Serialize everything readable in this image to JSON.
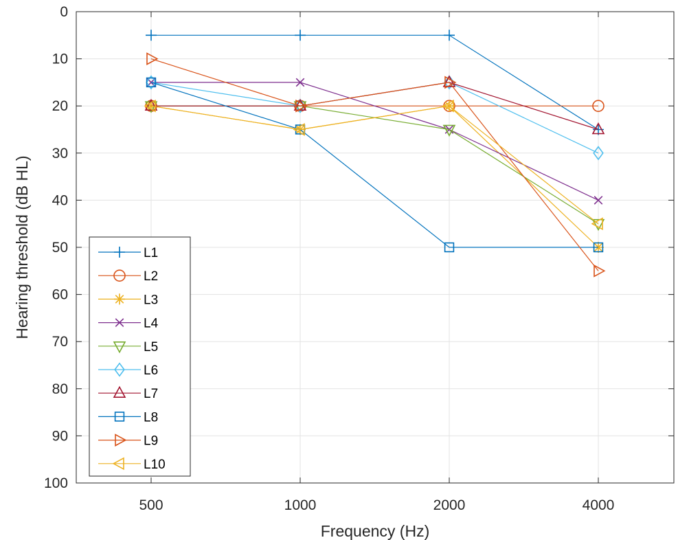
{
  "chart_data": {
    "type": "line",
    "title": "",
    "xlabel": "Frequency (Hz)",
    "ylabel": "Hearing threshold (dB HL)",
    "x_categories": [
      "500",
      "1000",
      "2000",
      "4000"
    ],
    "y_ticks": [
      0,
      10,
      20,
      30,
      40,
      50,
      60,
      70,
      80,
      90,
      100
    ],
    "ylim": [
      0,
      100
    ],
    "y_reversed": true,
    "grid": true,
    "legend_location": "bottom-left",
    "series": [
      {
        "name": "L1",
        "color": "#0072BD",
        "marker": "plus",
        "values": [
          5,
          5,
          5,
          25
        ]
      },
      {
        "name": "L2",
        "color": "#D95319",
        "marker": "circle",
        "values": [
          20,
          20,
          20,
          20
        ]
      },
      {
        "name": "L3",
        "color": "#EDB120",
        "marker": "asterisk",
        "values": [
          20,
          25,
          20,
          50
        ]
      },
      {
        "name": "L4",
        "color": "#7E2F8E",
        "marker": "x",
        "values": [
          15,
          15,
          25,
          40
        ]
      },
      {
        "name": "L5",
        "color": "#77AC30",
        "marker": "triangle-down",
        "values": [
          20,
          20,
          25,
          45
        ]
      },
      {
        "name": "L6",
        "color": "#4DBEEE",
        "marker": "diamond",
        "values": [
          15,
          20,
          15,
          30
        ]
      },
      {
        "name": "L7",
        "color": "#A2142F",
        "marker": "triangle-up",
        "values": [
          20,
          20,
          15,
          25
        ]
      },
      {
        "name": "L8",
        "color": "#0072BD",
        "marker": "square",
        "values": [
          15,
          25,
          50,
          50
        ]
      },
      {
        "name": "L9",
        "color": "#D95319",
        "marker": "triangle-right",
        "values": [
          10,
          20,
          15,
          55
        ]
      },
      {
        "name": "L10",
        "color": "#EDB120",
        "marker": "triangle-left",
        "values": [
          20,
          25,
          20,
          45
        ]
      }
    ]
  }
}
